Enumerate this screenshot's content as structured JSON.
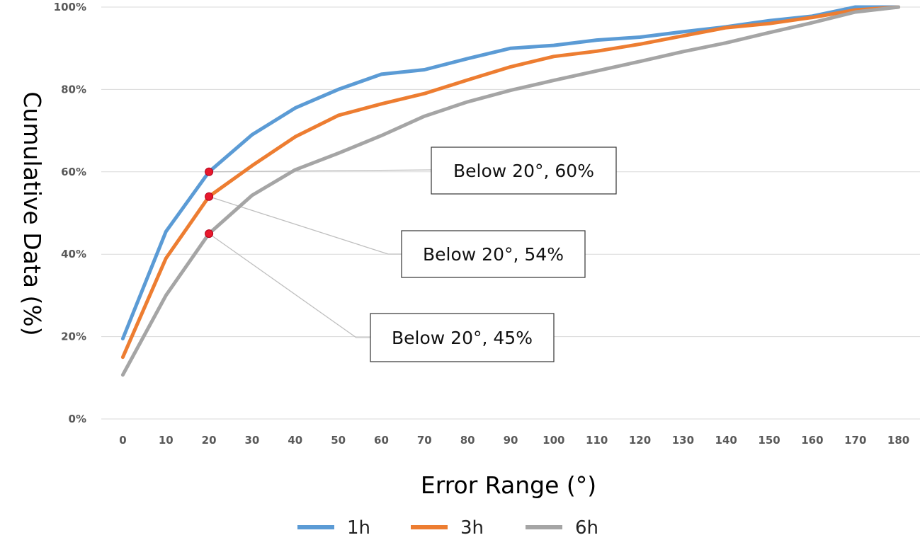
{
  "chart_data": {
    "type": "line",
    "xlabel": "Error Range (°)",
    "ylabel": "Cumulative Data (%)",
    "x": [
      0,
      10,
      20,
      30,
      40,
      50,
      60,
      70,
      80,
      90,
      100,
      110,
      120,
      130,
      140,
      150,
      160,
      170,
      180
    ],
    "x_tick_labels": [
      "0",
      "10",
      "20",
      "30",
      "40",
      "50",
      "60",
      "70",
      "80",
      "90",
      "100",
      "110",
      "120",
      "130",
      "140",
      "150",
      "160",
      "170",
      "180"
    ],
    "y_tick_labels": [
      "0%",
      "20%",
      "40%",
      "60%",
      "80%",
      "100%"
    ],
    "y_ticks": [
      0,
      20,
      40,
      60,
      80,
      100
    ],
    "ylim": [
      0,
      100
    ],
    "grid": true,
    "legend_position": "bottom",
    "series": [
      {
        "name": "1h",
        "color": "#5b9bd5",
        "values": [
          19.5,
          45.5,
          60.0,
          69.0,
          75.5,
          80.0,
          83.7,
          84.8,
          87.5,
          90.0,
          90.7,
          92.0,
          92.7,
          94.0,
          95.2,
          96.7,
          97.8,
          100,
          100
        ]
      },
      {
        "name": "3h",
        "color": "#ed7d31",
        "values": [
          15.0,
          39.0,
          54.0,
          61.5,
          68.5,
          73.7,
          76.5,
          79.0,
          82.3,
          85.5,
          88.0,
          89.3,
          91.0,
          93.0,
          95.0,
          96.0,
          97.5,
          99.3,
          100
        ]
      },
      {
        "name": "6h",
        "color": "#a5a5a5",
        "values": [
          10.7,
          30.0,
          45.0,
          54.3,
          60.5,
          64.5,
          68.8,
          73.5,
          77.0,
          79.8,
          82.2,
          84.5,
          86.8,
          89.2,
          91.3,
          93.8,
          96.2,
          98.8,
          100
        ]
      }
    ],
    "annotations": [
      {
        "text": "Below 20°, 60%",
        "x": 20,
        "y": 60,
        "series": "1h"
      },
      {
        "text": "Below 20°, 54%",
        "x": 20,
        "y": 54,
        "series": "3h"
      },
      {
        "text": "Below 20°, 45%",
        "x": 20,
        "y": 45,
        "series": "6h"
      }
    ],
    "marker_color": "#e8192c"
  }
}
